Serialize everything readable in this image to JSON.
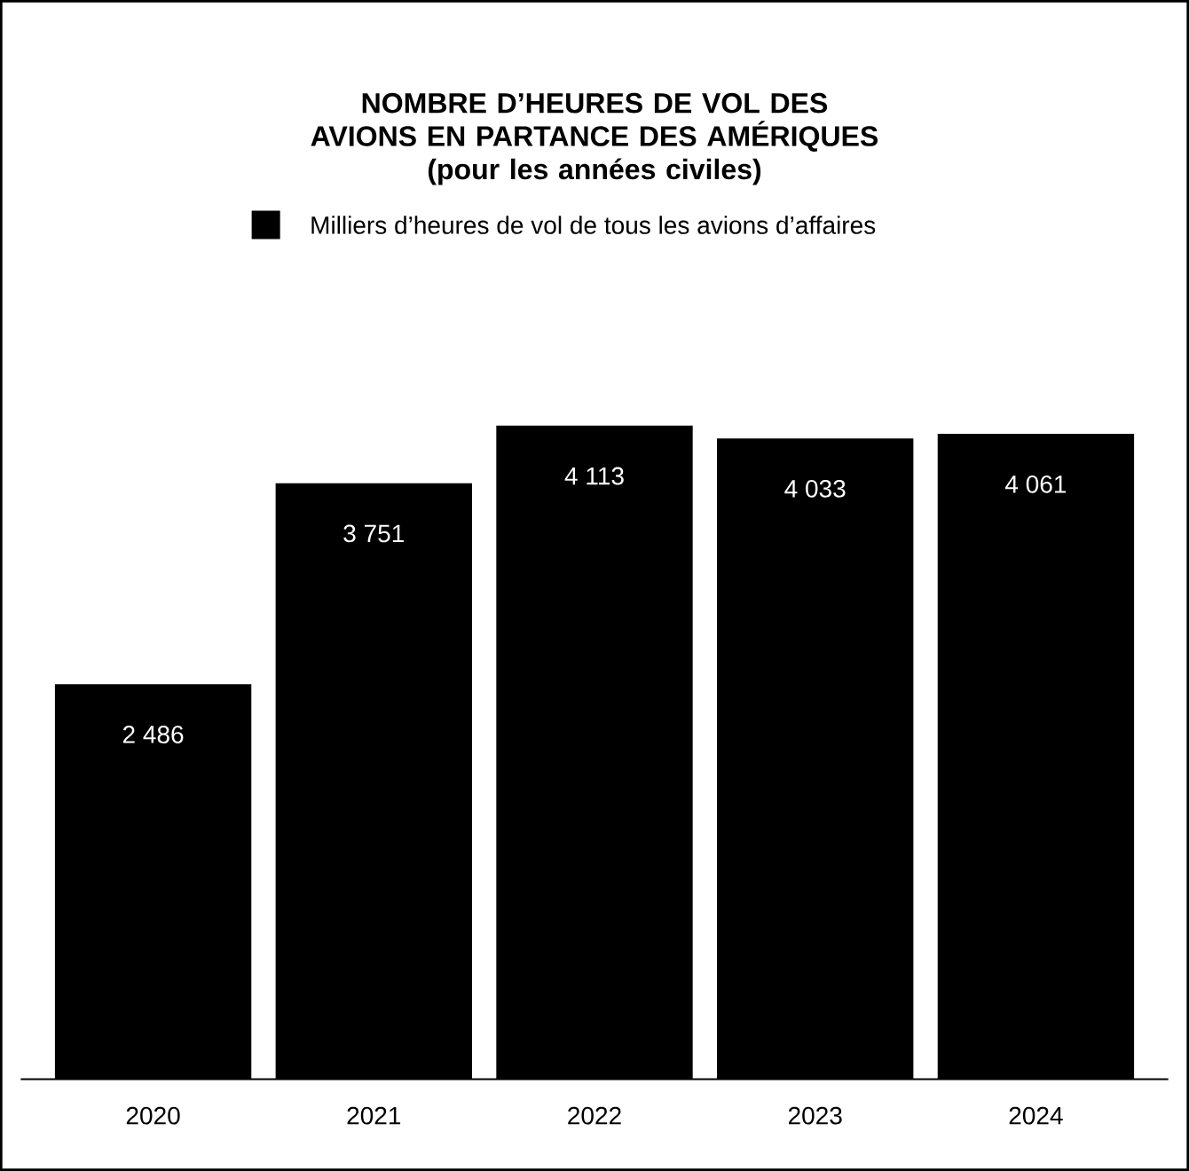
{
  "chart_data": {
    "type": "bar",
    "title": "NOMBRE D’HEURES DE VOL DES AVIONS EN PARTANCE DES AMÉRIQUES",
    "subtitle": "(pour les années civiles)",
    "categories": [
      "2020",
      "2021",
      "2022",
      "2023",
      "2024"
    ],
    "series": [
      {
        "name": "Milliers d’heures de vol de tous les avions d’affaires",
        "color": "#000000",
        "values": [
          2486,
          3751,
          4113,
          4033,
          4061
        ],
        "value_labels": [
          "2 486",
          "3 751",
          "4 113",
          "4 033",
          "4 061"
        ]
      }
    ],
    "legend": "top"
  }
}
